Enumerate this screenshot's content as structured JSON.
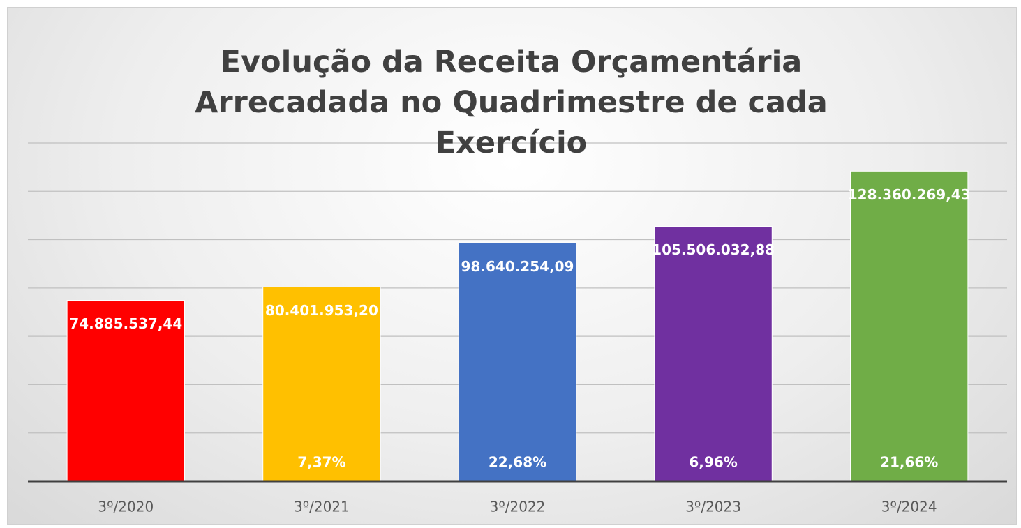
{
  "chart_data": {
    "type": "bar",
    "title": "Evolução da Receita Orçamentária Arrecadada no Quadrimestre de cada Exercício",
    "categories": [
      "3º/2020",
      "3º/2021",
      "3º/2022",
      "3º/2023",
      "3º/2024"
    ],
    "values": [
      74885537.44,
      80401953.2,
      98640254.09,
      105506032.88,
      128360269.43
    ],
    "value_labels": [
      "74.885.537,44",
      "80.401.953,20",
      "98.640.254,09",
      "105.506.032,88",
      "128.360.269,43"
    ],
    "growth": [
      null,
      7.37,
      22.68,
      6.96,
      21.66
    ],
    "growth_labels": [
      null,
      "7,37%",
      "22,68%",
      "6,96%",
      "21,66%"
    ],
    "colors": [
      "#ff0000",
      "#ffc000",
      "#4472c4",
      "#7030a0",
      "#70ad47"
    ],
    "ylim": [
      0,
      140000000
    ],
    "yticks": [
      0,
      20000000,
      40000000,
      60000000,
      80000000,
      100000000,
      120000000,
      140000000
    ],
    "grid": true
  }
}
